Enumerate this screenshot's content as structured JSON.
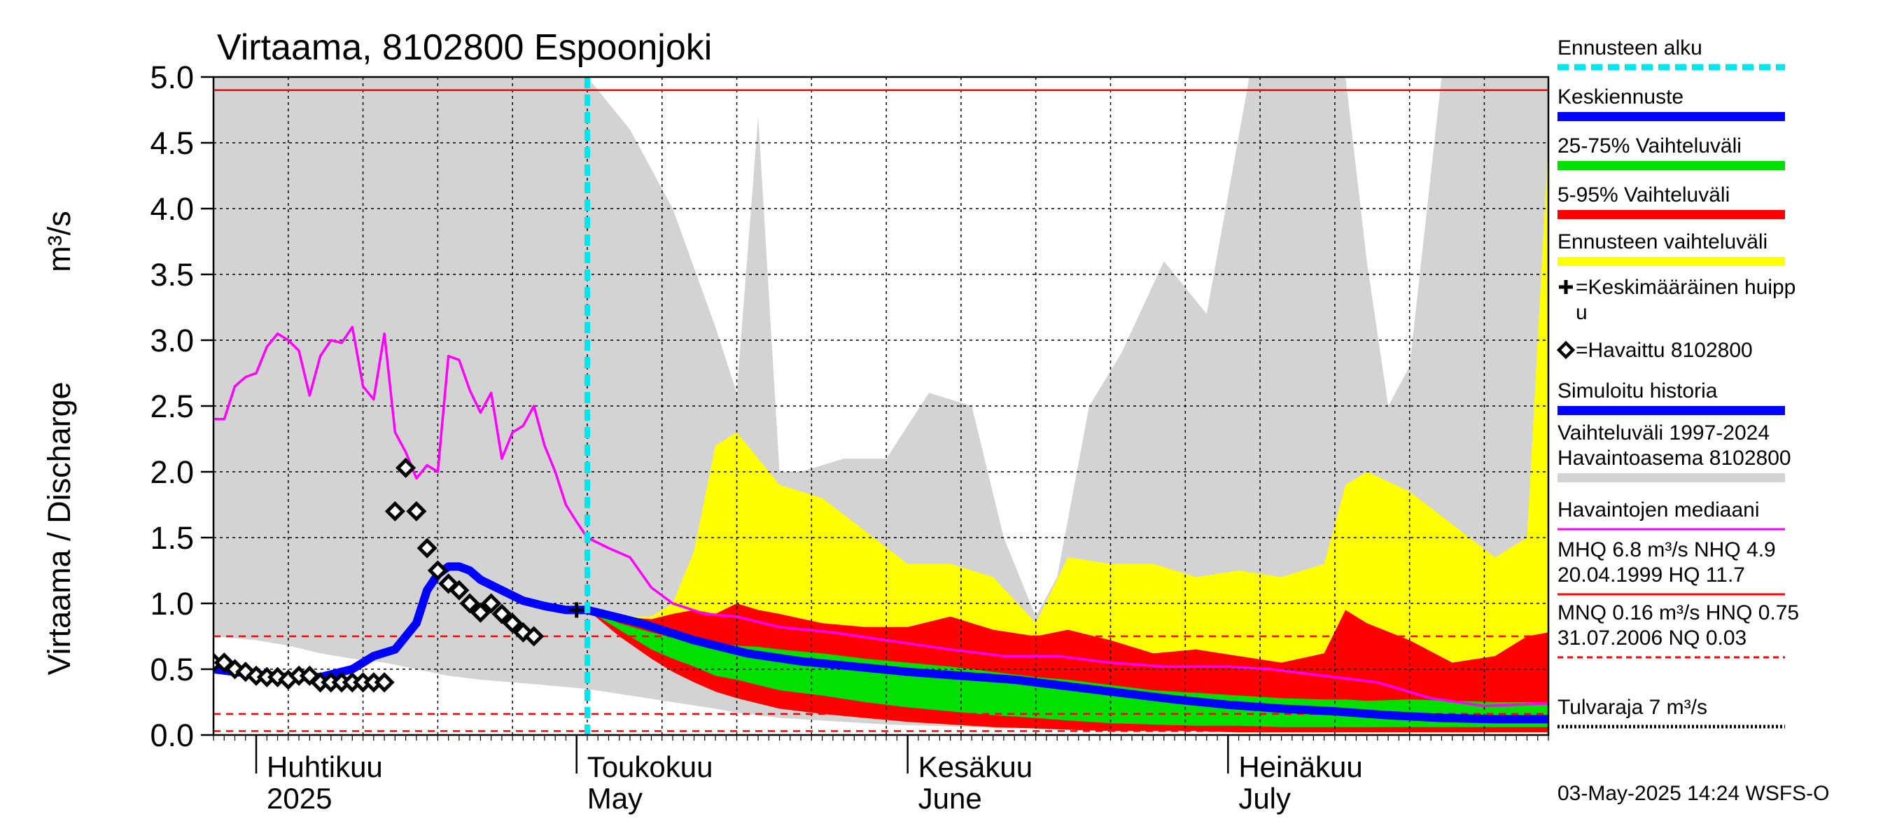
{
  "title": "Virtaama, 8102800 Espoonjoki",
  "y_axis": {
    "label": "Virtaama / Discharge",
    "unit": "m³/s",
    "ticks": [
      "0.0",
      "0.5",
      "1.0",
      "1.5",
      "2.0",
      "2.5",
      "3.0",
      "3.5",
      "4.0",
      "4.5",
      "5.0"
    ]
  },
  "x_axis": {
    "months": [
      {
        "fi": "Huhtikuu",
        "en": "2025",
        "date": "2025-04-01"
      },
      {
        "fi": "Toukokuu",
        "en": "May",
        "date": "2025-05-01"
      },
      {
        "fi": "Kesäkuu",
        "en": "June",
        "date": "2025-06-01"
      },
      {
        "fi": "Heinäkuu",
        "en": "July",
        "date": "2025-07-01"
      }
    ]
  },
  "legend": [
    {
      "label": "Ennusteen alku",
      "color": "#00e5ee",
      "style": "dashed"
    },
    {
      "label": "Keskiennuste",
      "color": "#0000ff",
      "style": "bar"
    },
    {
      "label": "25-75% Vaihteluväli",
      "color": "#00e000",
      "style": "bar"
    },
    {
      "label": "5-95% Vaihteluväli",
      "color": "#ff0000",
      "style": "bar"
    },
    {
      "label": "Ennusteen vaihteluväli",
      "color": "#ffff00",
      "style": "bar"
    },
    {
      "label": "=Keskimääräinen huipp",
      "label2": "u",
      "color": "#000000",
      "style": "plus"
    },
    {
      "label": "=Havaittu 8102800",
      "color": "#000000",
      "style": "diamond"
    },
    {
      "label": "Simuloitu historia",
      "color": "#0000ff",
      "style": "bar"
    },
    {
      "label": "Vaihteluväli 1997-2024",
      "label2": " Havaintoasema 8102800",
      "color": "#d3d3d3",
      "style": "bar"
    },
    {
      "label": "Havaintojen mediaani",
      "color": "#ff00ff",
      "style": "thin"
    },
    {
      "label": "MHQ  6.8 m³/s NHQ  4.9",
      "label2": "20.04.1999 HQ 11.7",
      "color": "#ff0000",
      "style": "thin"
    },
    {
      "label": "MNQ 0.16 m³/s HNQ 0.75",
      "label2": "31.07.2006 NQ 0.03",
      "color": "#ff0000",
      "style": "dashed-thin"
    },
    {
      "label": "Tulvaraja 7 m³/s",
      "color": "#000000",
      "style": "dotted"
    }
  ],
  "timestamp": "03-May-2025 14:24 WSFS-O",
  "colors": {
    "history_range": "#d3d3d3",
    "forecast_range": "#ffff00",
    "p5_95": "#ff0000",
    "p25_75": "#00e000",
    "mean_forecast": "#0000ff",
    "simulated": "#0000ff",
    "median": "#ff00ff",
    "forecast_start": "#00e5ee",
    "reference_lines": "#ff0000"
  },
  "chart_data": {
    "type": "line",
    "x_start": "2025-03-28",
    "x_end": "2025-07-31",
    "forecast_start": "2025-05-02",
    "ylim": [
      0,
      5.0
    ],
    "reference_lines": [
      {
        "name": "NHQ",
        "y": 4.9,
        "style": "solid"
      },
      {
        "name": "HNQ",
        "y": 0.75,
        "style": "dashed"
      },
      {
        "name": "MNQ",
        "y": 0.16,
        "style": "dashed"
      },
      {
        "name": "NQ",
        "y": 0.03,
        "style": "dashed"
      }
    ],
    "history_range": {
      "name": "Vaihteluväli 1997-2024",
      "dates": [
        "2025-03-28",
        "2025-04-01",
        "2025-04-04",
        "2025-04-07",
        "2025-04-10",
        "2025-04-13",
        "2025-04-16",
        "2025-04-19",
        "2025-04-22",
        "2025-04-25",
        "2025-04-28",
        "2025-05-02",
        "2025-05-06",
        "2025-05-10",
        "2025-05-14",
        "2025-05-16",
        "2025-05-18",
        "2025-05-20",
        "2025-05-22",
        "2025-05-26",
        "2025-05-30",
        "2025-06-03",
        "2025-06-07",
        "2025-06-10",
        "2025-06-13",
        "2025-06-15",
        "2025-06-18",
        "2025-06-21",
        "2025-06-25",
        "2025-06-29",
        "2025-07-03",
        "2025-07-07",
        "2025-07-10",
        "2025-07-12",
        "2025-07-14",
        "2025-07-16",
        "2025-07-18",
        "2025-07-21",
        "2025-07-25",
        "2025-07-29",
        "2025-07-31"
      ],
      "high": [
        5.0,
        5.0,
        5.0,
        5.0,
        5.0,
        5.0,
        5.0,
        5.0,
        5.0,
        5.0,
        5.0,
        5.0,
        4.6,
        4.0,
        3.1,
        2.6,
        4.7,
        2.0,
        2.0,
        2.1,
        2.1,
        2.6,
        2.5,
        1.5,
        0.9,
        1.2,
        2.5,
        2.9,
        3.6,
        3.2,
        5.0,
        5.0,
        5.0,
        5.0,
        3.6,
        2.5,
        2.8,
        5.0,
        5.0,
        5.0,
        5.0
      ],
      "low": [
        0.75,
        0.72,
        0.68,
        0.62,
        0.58,
        0.55,
        0.5,
        0.45,
        0.42,
        0.4,
        0.38,
        0.35,
        0.3,
        0.25,
        0.2,
        0.17,
        0.15,
        0.13,
        0.12,
        0.1,
        0.08,
        0.07,
        0.06,
        0.05,
        0.05,
        0.04,
        0.04,
        0.04,
        0.03,
        0.03,
        0.03,
        0.03,
        0.03,
        0.03,
        0.03,
        0.03,
        0.03,
        0.03,
        0.03,
        0.03,
        0.03
      ]
    },
    "series": [
      {
        "name": "Havaintojen mediaani",
        "color": "#ff00ff",
        "dates": [
          "2025-03-28",
          "2025-03-29",
          "2025-03-30",
          "2025-03-31",
          "2025-04-01",
          "2025-04-02",
          "2025-04-03",
          "2025-04-04",
          "2025-04-05",
          "2025-04-06",
          "2025-04-07",
          "2025-04-08",
          "2025-04-09",
          "2025-04-10",
          "2025-04-11",
          "2025-04-12",
          "2025-04-13",
          "2025-04-14",
          "2025-04-15",
          "2025-04-16",
          "2025-04-17",
          "2025-04-18",
          "2025-04-19",
          "2025-04-20",
          "2025-04-21",
          "2025-04-22",
          "2025-04-23",
          "2025-04-24",
          "2025-04-25",
          "2025-04-26",
          "2025-04-27",
          "2025-04-28",
          "2025-04-29",
          "2025-04-30",
          "2025-05-01",
          "2025-05-02",
          "2025-05-04",
          "2025-05-06",
          "2025-05-08",
          "2025-05-10",
          "2025-05-13",
          "2025-05-16",
          "2025-05-20",
          "2025-05-25",
          "2025-05-30",
          "2025-06-05",
          "2025-06-10",
          "2025-06-15",
          "2025-06-20",
          "2025-06-25",
          "2025-07-01",
          "2025-07-05",
          "2025-07-10",
          "2025-07-15",
          "2025-07-20",
          "2025-07-25",
          "2025-07-31"
        ],
        "values": [
          2.4,
          2.4,
          2.65,
          2.72,
          2.75,
          2.95,
          3.05,
          3.0,
          2.92,
          2.58,
          2.88,
          3.0,
          2.98,
          3.1,
          2.65,
          2.55,
          3.05,
          2.3,
          2.15,
          1.95,
          2.05,
          2.0,
          2.88,
          2.85,
          2.62,
          2.45,
          2.6,
          2.1,
          2.3,
          2.35,
          2.5,
          2.2,
          2.0,
          1.75,
          1.62,
          1.5,
          1.42,
          1.35,
          1.12,
          1.0,
          0.92,
          0.9,
          0.82,
          0.78,
          0.72,
          0.65,
          0.6,
          0.6,
          0.55,
          0.52,
          0.52,
          0.5,
          0.45,
          0.4,
          0.28,
          0.22,
          0.24
        ]
      },
      {
        "name": "Simuloitu historia",
        "color": "#0000ff",
        "dates": [
          "2025-03-28",
          "2025-04-01",
          "2025-04-04",
          "2025-04-07",
          "2025-04-10",
          "2025-04-12",
          "2025-04-14",
          "2025-04-16",
          "2025-04-17",
          "2025-04-18",
          "2025-04-19",
          "2025-04-20",
          "2025-04-21",
          "2025-04-22",
          "2025-04-24",
          "2025-04-26",
          "2025-04-28",
          "2025-04-30",
          "2025-05-02"
        ],
        "values": [
          0.5,
          0.46,
          0.44,
          0.44,
          0.5,
          0.6,
          0.65,
          0.85,
          1.1,
          1.22,
          1.28,
          1.28,
          1.25,
          1.18,
          1.1,
          1.02,
          0.98,
          0.95,
          0.95
        ]
      },
      {
        "name": "Keskiennuste",
        "color": "#0000ff",
        "dates": [
          "2025-05-02",
          "2025-05-07",
          "2025-05-12",
          "2025-05-17",
          "2025-05-22",
          "2025-05-27",
          "2025-06-01",
          "2025-06-06",
          "2025-06-11",
          "2025-06-16",
          "2025-06-21",
          "2025-06-26",
          "2025-07-01",
          "2025-07-06",
          "2025-07-11",
          "2025-07-16",
          "2025-07-21",
          "2025-07-26",
          "2025-07-31"
        ],
        "values": [
          0.95,
          0.85,
          0.72,
          0.62,
          0.56,
          0.52,
          0.48,
          0.45,
          0.42,
          0.37,
          0.32,
          0.27,
          0.23,
          0.2,
          0.18,
          0.15,
          0.13,
          0.12,
          0.12
        ]
      }
    ],
    "forecast_bands": {
      "dates": [
        "2025-05-02",
        "2025-05-05",
        "2025-05-08",
        "2025-05-10",
        "2025-05-12",
        "2025-05-14",
        "2025-05-16",
        "2025-05-18",
        "2025-05-20",
        "2025-05-24",
        "2025-05-28",
        "2025-06-01",
        "2025-06-05",
        "2025-06-09",
        "2025-06-13",
        "2025-06-16",
        "2025-06-20",
        "2025-06-24",
        "2025-06-28",
        "2025-07-02",
        "2025-07-06",
        "2025-07-10",
        "2025-07-12",
        "2025-07-14",
        "2025-07-18",
        "2025-07-22",
        "2025-07-26",
        "2025-07-29",
        "2025-07-31"
      ],
      "envelope_high": [
        0.95,
        0.9,
        0.9,
        1.0,
        1.4,
        2.2,
        2.3,
        2.1,
        1.9,
        1.8,
        1.55,
        1.3,
        1.3,
        1.2,
        0.85,
        1.35,
        1.3,
        1.3,
        1.2,
        1.25,
        1.2,
        1.3,
        1.9,
        2.0,
        1.85,
        1.6,
        1.35,
        1.5,
        4.5
      ],
      "envelope_low": [
        0.95,
        0.82,
        0.7,
        0.6,
        0.5,
        0.42,
        0.35,
        0.28,
        0.22,
        0.17,
        0.13,
        0.1,
        0.08,
        0.06,
        0.05,
        0.04,
        0.03,
        0.03,
        0.03,
        0.02,
        0.02,
        0.02,
        0.02,
        0.02,
        0.02,
        0.02,
        0.02,
        0.02,
        0.02
      ],
      "p95": [
        0.95,
        0.9,
        0.88,
        0.92,
        0.95,
        0.92,
        1.0,
        0.95,
        0.92,
        0.85,
        0.82,
        0.82,
        0.9,
        0.8,
        0.75,
        0.8,
        0.72,
        0.62,
        0.65,
        0.6,
        0.55,
        0.62,
        0.95,
        0.85,
        0.72,
        0.55,
        0.6,
        0.75,
        0.78
      ],
      "p75": [
        0.95,
        0.85,
        0.78,
        0.74,
        0.72,
        0.7,
        0.68,
        0.67,
        0.65,
        0.62,
        0.58,
        0.55,
        0.52,
        0.48,
        0.44,
        0.42,
        0.38,
        0.34,
        0.32,
        0.3,
        0.28,
        0.27,
        0.27,
        0.26,
        0.27,
        0.26,
        0.25,
        0.25,
        0.25
      ],
      "p25": [
        0.95,
        0.8,
        0.65,
        0.58,
        0.52,
        0.45,
        0.42,
        0.38,
        0.34,
        0.3,
        0.25,
        0.21,
        0.18,
        0.15,
        0.13,
        0.11,
        0.09,
        0.08,
        0.07,
        0.07,
        0.06,
        0.06,
        0.06,
        0.06,
        0.06,
        0.06,
        0.06,
        0.06,
        0.06
      ],
      "p5": [
        0.95,
        0.75,
        0.58,
        0.48,
        0.4,
        0.33,
        0.28,
        0.24,
        0.2,
        0.16,
        0.13,
        0.1,
        0.08,
        0.06,
        0.05,
        0.04,
        0.03,
        0.03,
        0.03,
        0.02,
        0.02,
        0.02,
        0.02,
        0.02,
        0.02,
        0.02,
        0.02,
        0.02,
        0.02
      ]
    },
    "observed": {
      "name": "Havaittu 8102800",
      "dates": [
        "2025-03-28",
        "2025-03-29",
        "2025-03-30",
        "2025-03-31",
        "2025-04-01",
        "2025-04-02",
        "2025-04-03",
        "2025-04-04",
        "2025-04-05",
        "2025-04-06",
        "2025-04-07",
        "2025-04-08",
        "2025-04-09",
        "2025-04-10",
        "2025-04-11",
        "2025-04-12",
        "2025-04-13",
        "2025-04-14",
        "2025-04-15",
        "2025-04-16",
        "2025-04-17",
        "2025-04-18",
        "2025-04-19",
        "2025-04-20",
        "2025-04-21",
        "2025-04-22",
        "2025-04-23",
        "2025-04-24",
        "2025-04-25",
        "2025-04-26",
        "2025-04-27",
        "2025-04-28",
        "2025-04-29",
        "2025-04-30",
        "2025-05-01",
        "2025-05-02"
      ],
      "values": [
        0.55,
        0.55,
        0.5,
        0.48,
        0.45,
        0.44,
        0.44,
        0.42,
        0.45,
        0.45,
        0.4,
        0.4,
        0.4,
        0.4,
        0.4,
        0.4,
        0.4,
        1.7,
        2.03,
        1.7,
        1.42,
        1.25,
        1.15,
        1.1,
        1.0,
        0.93,
        1.0,
        0.92,
        0.85,
        0.78,
        0.75,
        null,
        null,
        null,
        null,
        null
      ]
    },
    "mean_peak": {
      "name": "Keskimääräinen huippu",
      "date": "2025-05-01",
      "value": 0.95
    }
  }
}
